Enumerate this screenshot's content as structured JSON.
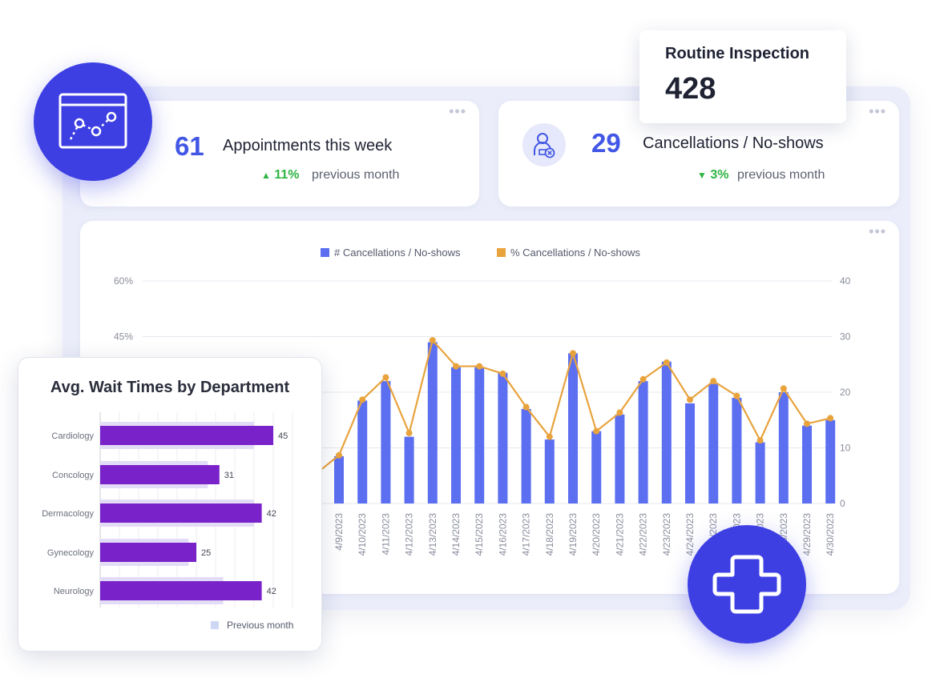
{
  "kpi_appointments": {
    "value": "61",
    "label": "Appointments this week",
    "delta": "11%",
    "delta_direction": "up",
    "delta_suffix": "previous month",
    "icon": "chart-window-icon"
  },
  "kpi_cancellations": {
    "value": "29",
    "label": "Cancellations / No-shows",
    "delta": "3%",
    "delta_direction": "down",
    "delta_suffix": "previous month",
    "icon": "person-cancel-icon"
  },
  "routine_inspection": {
    "title": "Routine Inspection",
    "value": "428"
  },
  "colors": {
    "accent": "#3d3fe3",
    "bar": "#5b6ff0",
    "line": "#e8a33d",
    "positive": "#2fb544",
    "hbar": "#7a22c9",
    "hbar_prev": "#e3dcf6"
  },
  "chart_data": [
    {
      "type": "bar",
      "legend": [
        "# Cancellations / No-shows",
        "% Cancellations / No-shows"
      ],
      "legend_position": "top",
      "x": [
        "4/9/2023",
        "4/10/2023",
        "4/11/2023",
        "4/12/2023",
        "4/13/2023",
        "4/14/2023",
        "4/15/2023",
        "4/16/2023",
        "4/17/2023",
        "4/18/2023",
        "4/19/2023",
        "4/20/2023",
        "4/21/2023",
        "4/22/2023",
        "4/23/2023",
        "4/24/2023",
        "4/25/2023",
        "4/26/2023",
        "4/27/2023",
        "4/28/2023",
        "4/29/2023",
        "4/30/2023"
      ],
      "series": [
        {
          "name": "# Cancellations / No-shows",
          "type": "bar",
          "axis": "right",
          "values": [
            8.5,
            18.5,
            22,
            12,
            29,
            24.5,
            24.5,
            23.5,
            17,
            11.5,
            27,
            13,
            16,
            22,
            25.5,
            18,
            21.5,
            19,
            11,
            20,
            14,
            15
          ]
        },
        {
          "name": "% Cancellations / No-shows",
          "type": "line",
          "axis": "left",
          "values": [
            13,
            28,
            34,
            19,
            44,
            37,
            37,
            35,
            26,
            18,
            40.5,
            19.5,
            24.5,
            33.5,
            38,
            28,
            33,
            29,
            17,
            31,
            21.5,
            23
          ]
        }
      ],
      "left_axis_ticks": [
        "60%",
        "45%"
      ],
      "right_axis_ticks": [
        "40",
        "30",
        "20",
        "10",
        "0"
      ],
      "left_ylim": [
        0,
        60
      ],
      "right_ylim": [
        0,
        40
      ],
      "grid": true
    },
    {
      "type": "bar",
      "orientation": "horizontal",
      "title": "Avg. Wait Times by Department",
      "categories": [
        "Cardiology",
        "Concology",
        "Dermacology",
        "Gynecology",
        "Neurology"
      ],
      "values": [
        45,
        31,
        42,
        25,
        42
      ],
      "previous_values": [
        40,
        28,
        40,
        23,
        32
      ],
      "legend": [
        "Previous month"
      ],
      "xlim": [
        0,
        50
      ],
      "grid": true
    }
  ]
}
